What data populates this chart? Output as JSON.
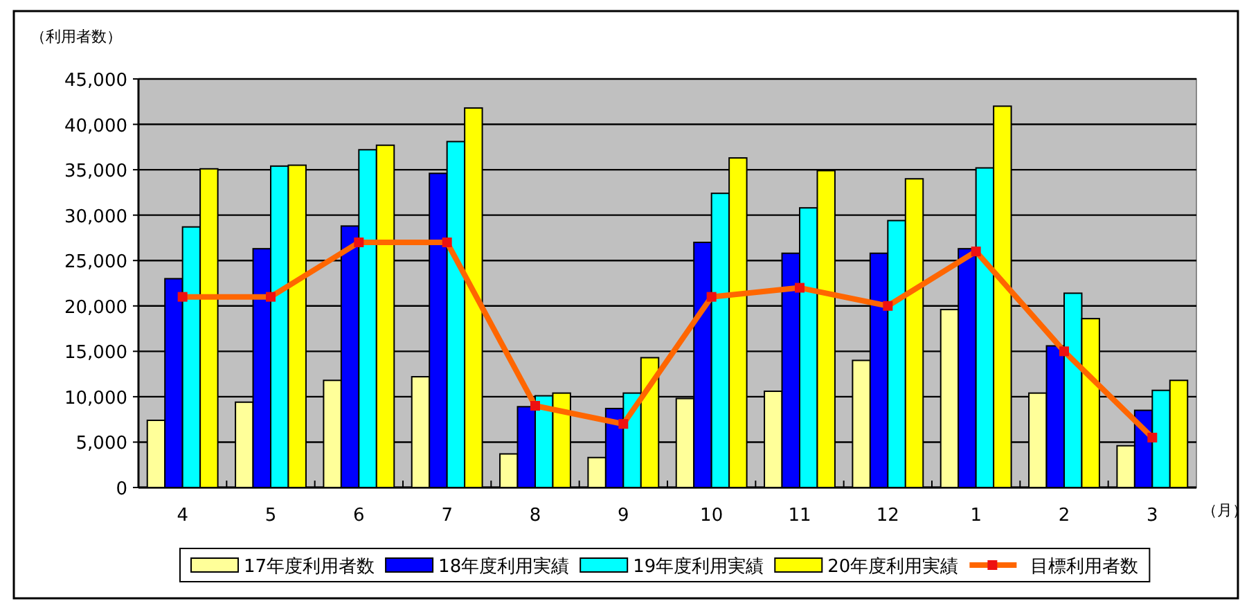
{
  "chart_data": {
    "type": "bar",
    "ylabel": "（利用者数）",
    "xlabel": "（月）",
    "categories": [
      "4",
      "5",
      "6",
      "7",
      "8",
      "9",
      "10",
      "11",
      "12",
      "1",
      "2",
      "3"
    ],
    "series": [
      {
        "name": "17年度利用者数",
        "color": "#ffff99",
        "values": [
          7400,
          9400,
          11800,
          12200,
          3700,
          3300,
          9800,
          10600,
          14000,
          19600,
          10400,
          4600
        ]
      },
      {
        "name": "18年度利用実績",
        "color": "#0000ff",
        "values": [
          23000,
          26300,
          28800,
          34600,
          8900,
          8700,
          27000,
          25800,
          25800,
          26300,
          15600,
          8500
        ]
      },
      {
        "name": "19年度利用実績",
        "color": "#00ffff",
        "values": [
          28700,
          35400,
          37200,
          38100,
          10100,
          10400,
          32400,
          30800,
          29400,
          35200,
          21400,
          10700
        ]
      },
      {
        "name": "20年度利用実績",
        "color": "#ffff00",
        "values": [
          35100,
          35500,
          37700,
          41800,
          10400,
          14300,
          36300,
          34900,
          34000,
          42000,
          18600,
          11800
        ]
      },
      {
        "name": "目標利用者数",
        "type": "line",
        "color": "#ff6600",
        "marker": "square",
        "values": [
          21000,
          21000,
          27000,
          27000,
          9000,
          7000,
          21000,
          22000,
          20000,
          26000,
          15000,
          5500
        ]
      }
    ],
    "ylim": [
      0,
      45000
    ],
    "yticks": [
      {
        "value": 0,
        "label": "0"
      },
      {
        "value": 5000,
        "label": "5,000"
      },
      {
        "value": 10000,
        "label": "10,000"
      },
      {
        "value": 15000,
        "label": "15,000"
      },
      {
        "value": 20000,
        "label": "20,000"
      },
      {
        "value": 25000,
        "label": "25,000"
      },
      {
        "value": 30000,
        "label": "30,000"
      },
      {
        "value": 35000,
        "label": "35,000"
      },
      {
        "value": 40000,
        "label": "40,000"
      },
      {
        "value": 45000,
        "label": "45,000"
      }
    ],
    "grid": "y",
    "legend": "bottom"
  }
}
